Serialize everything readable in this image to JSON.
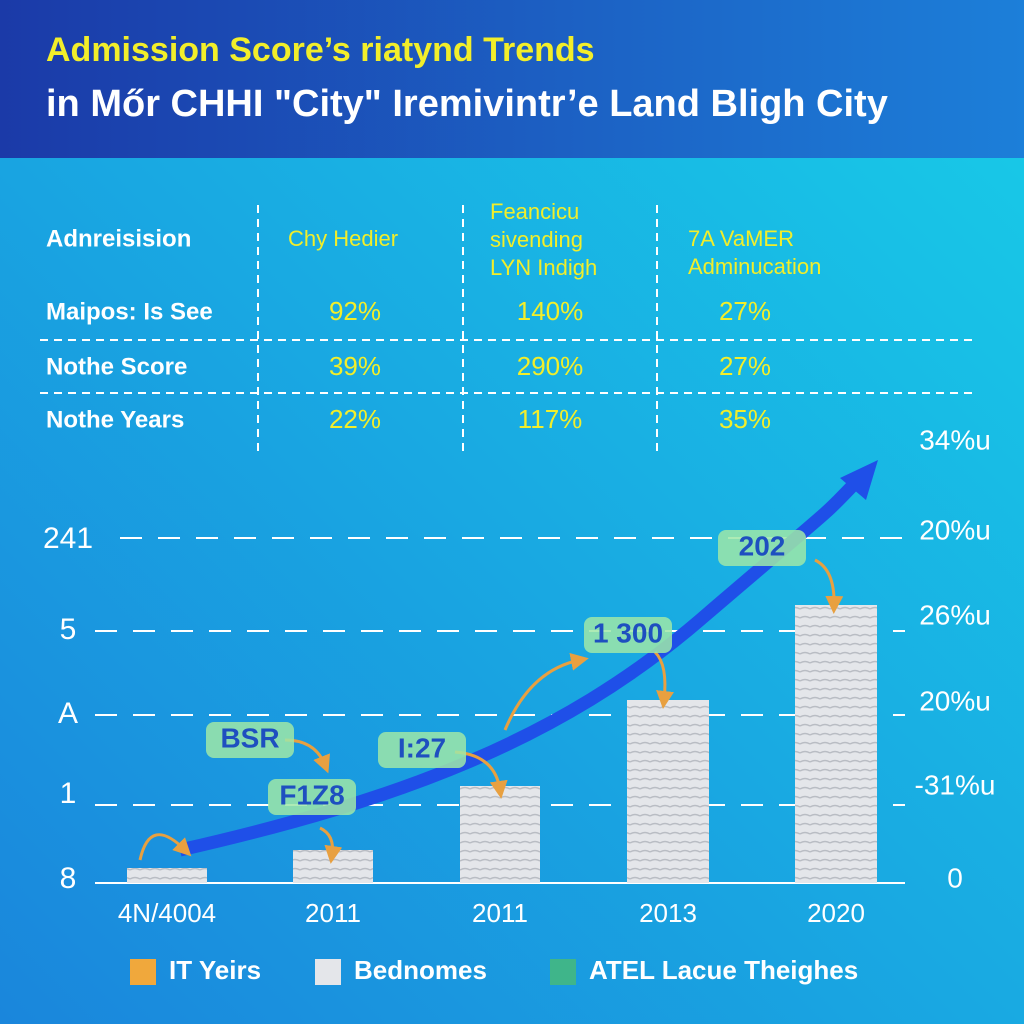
{
  "header": {
    "title": "Admission Score’s riatynd Trends",
    "subtitle": "in Mőr CHHI \"City\" Iremivintr’e Land Bligh City"
  },
  "table": {
    "header": [
      "Adnreisision",
      [
        "Chy Hedier"
      ],
      [
        "Feancicu",
        "sivending",
        "LYN Indigh"
      ],
      [
        "7A VaMER",
        "Adminucation"
      ]
    ],
    "rows": [
      [
        "Maipos: Is Sее",
        "92%",
        "140%",
        "27%"
      ],
      [
        "Nothe Score",
        "39%",
        "290%",
        "27%"
      ],
      [
        "Nothe Years",
        "22%",
        "117%",
        "35%"
      ]
    ]
  },
  "chart": {
    "left_labels": [
      "241",
      "5",
      "A",
      "1",
      "8"
    ],
    "right_labels": [
      "34%u",
      "20%u",
      "26%u",
      "20%u",
      "-31%u",
      "0"
    ],
    "x_labels": [
      "4N/4004",
      "2011",
      "2011",
      "2013",
      "2020"
    ],
    "annotations": [
      "BSR",
      "F1Z8",
      "I:27",
      "1  300",
      "202"
    ],
    "legend": [
      "IT Yeirs",
      "Bednomes",
      "ATEL Lacue Theighes"
    ]
  }
}
